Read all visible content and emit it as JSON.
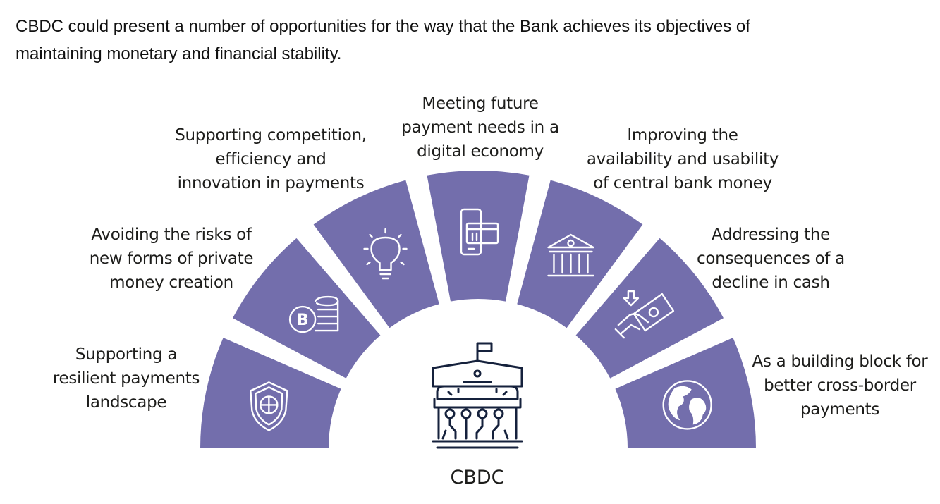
{
  "intro": {
    "line1": "CBDC could present a number of opportunities for the way that the Bank achieves its objectives of",
    "line2": "maintaining monetary and financial stability."
  },
  "center_label": "CBDC",
  "colors": {
    "segment": "#736eac",
    "icon": "#ffffff",
    "bank": "#15213c",
    "text": "#1d1d1b"
  },
  "segments": [
    {
      "icon": "shield-icon",
      "lines": [
        "Supporting a",
        "resilient payments",
        "landscape"
      ]
    },
    {
      "icon": "coins-bitcoin-icon",
      "lines": [
        "Avoiding the risks of",
        "new forms of private",
        "money creation"
      ]
    },
    {
      "icon": "lightbulb-icon",
      "lines": [
        "Supporting competition,",
        "efficiency and",
        "innovation in payments"
      ]
    },
    {
      "icon": "phone-card-icon",
      "lines": [
        "Meeting future",
        "payment needs in a",
        "digital economy"
      ]
    },
    {
      "icon": "bank-building-icon",
      "lines": [
        "Improving the",
        "availability and usability",
        "of central bank money"
      ]
    },
    {
      "icon": "cash-hand-icon",
      "lines": [
        "Addressing the",
        "consequences of a",
        "decline in cash"
      ]
    },
    {
      "icon": "globe-icon",
      "lines": [
        "As a building block for",
        "better cross-border",
        "payments"
      ]
    }
  ]
}
